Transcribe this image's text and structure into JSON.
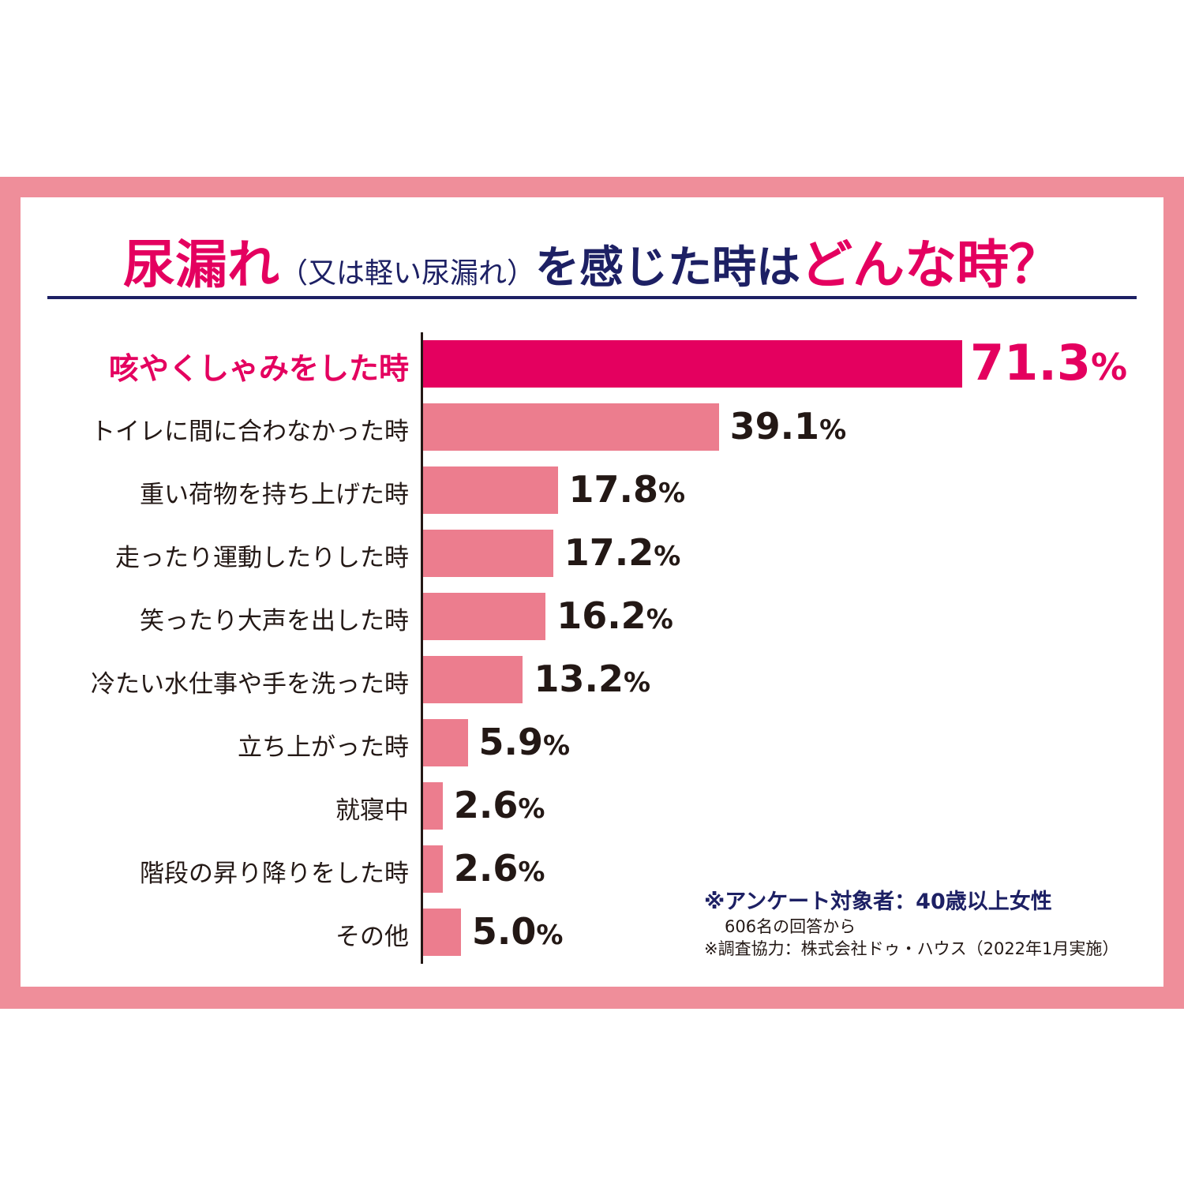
{
  "title": {
    "part1": "尿漏れ",
    "part2": "（又は軽い尿漏れ）",
    "part3": "を感じた時は",
    "part4": "どんな時？"
  },
  "notes": {
    "line1": "※アンケート対象者：40歳以上女性",
    "line2": "606名の回答から",
    "line3": "※調査協力：株式会社ドゥ・ハウス（2022年1月実施）"
  },
  "colors": {
    "frame": "#EF8E9A",
    "highlight": "#E4005F",
    "bar": "#EC7D8E",
    "navy": "#1D2064"
  },
  "chart_data": {
    "type": "bar",
    "orientation": "horizontal",
    "unit": "%",
    "categories": [
      "咳やくしゃみをした時",
      "トイレに間に合わなかった時",
      "重い荷物を持ち上げた時",
      "走ったり運動したりした時",
      "笑ったり大声を出した時",
      "冷たい水仕事や手を洗った時",
      "立ち上がった時",
      "就寝中",
      "階段の昇り降りをした時",
      "その他"
    ],
    "values": [
      71.3,
      39.1,
      17.8,
      17.2,
      16.2,
      13.2,
      5.9,
      2.6,
      2.6,
      5.0
    ],
    "highlighted_index": 0
  }
}
